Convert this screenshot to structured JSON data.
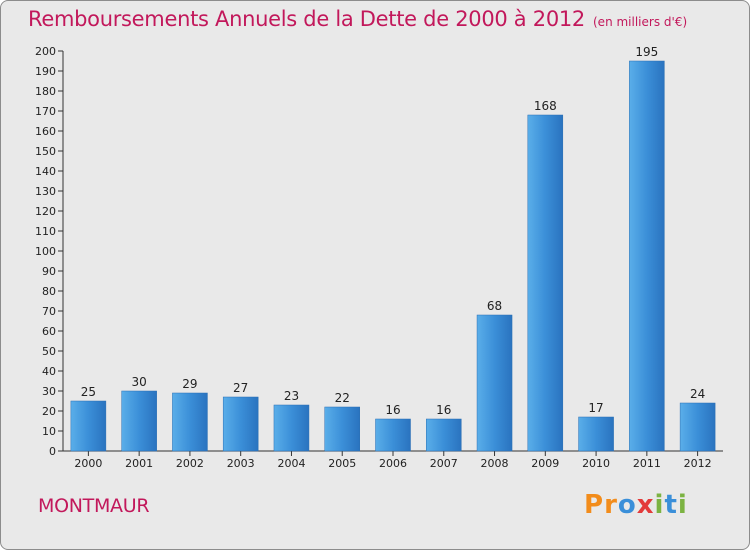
{
  "chart_data": {
    "type": "bar",
    "title": "Remboursements Annuels de la Dette de 2000 à 2012",
    "subtitle": "(en milliers d'€)",
    "categories": [
      "2000",
      "2001",
      "2002",
      "2003",
      "2004",
      "2005",
      "2006",
      "2007",
      "2008",
      "2009",
      "2010",
      "2011",
      "2012"
    ],
    "values": [
      25,
      30,
      29,
      27,
      23,
      22,
      16,
      16,
      68,
      168,
      17,
      195,
      24
    ],
    "ylim": [
      0,
      200
    ],
    "ytick_step": 10,
    "grid": false,
    "bar_color": "#3d8fd6",
    "xlabel": "",
    "ylabel": ""
  },
  "footer": {
    "town": "MONTMAUR",
    "logo": "Proxiti"
  },
  "colors": {
    "title": "#c2185b",
    "background": "#e9e9e9"
  }
}
